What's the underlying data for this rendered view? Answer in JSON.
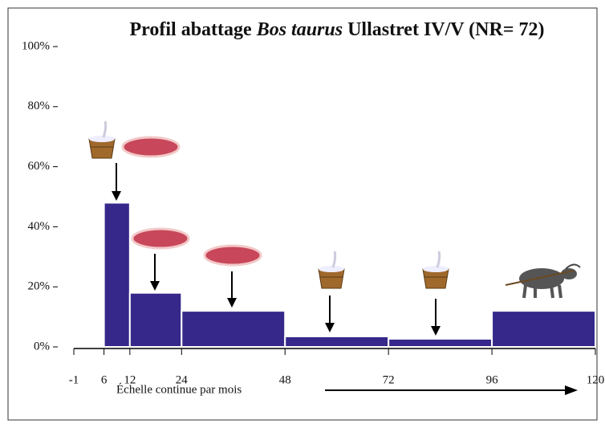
{
  "chart_data": {
    "type": "histogram",
    "title": [
      "Profil abattage",
      "Bos taurus",
      "Ullastret IV/V (NR= 72)"
    ],
    "x_label": "Échelle continue par mois",
    "bins": [
      -1,
      6,
      12,
      24,
      48,
      72,
      96,
      120
    ],
    "values": [
      0.5,
      48,
      18,
      12,
      3.5,
      2.7,
      12
    ],
    "color": "#35288a",
    "xlim": [
      -1,
      120
    ],
    "xticks": [
      -1,
      6,
      12,
      24,
      48,
      72,
      96,
      120
    ],
    "ylim": [
      0,
      100
    ],
    "yticks": [
      {
        "value": 0,
        "label": "0%"
      },
      {
        "value": 20,
        "label": "20%"
      },
      {
        "value": 40,
        "label": "40%"
      },
      {
        "value": 60,
        "label": "60%"
      },
      {
        "value": 80,
        "label": "80%"
      },
      {
        "value": 100,
        "label": "100%"
      }
    ]
  }
}
